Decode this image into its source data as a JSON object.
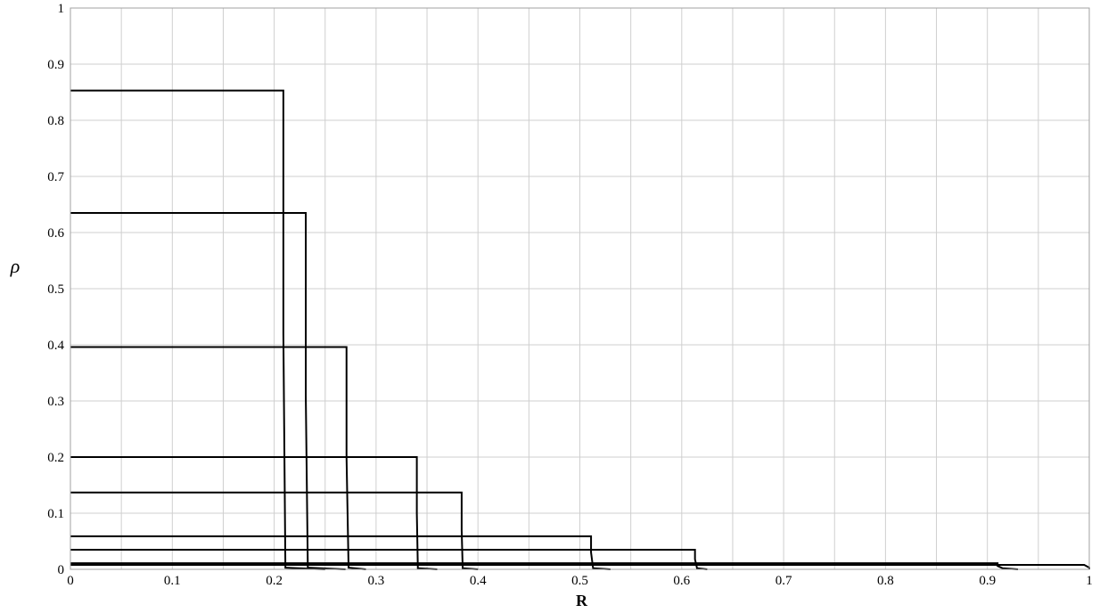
{
  "chart_data": {
    "type": "line",
    "title": "",
    "xlabel": "R",
    "ylabel": "ρ",
    "xlim": [
      0,
      1
    ],
    "ylim": [
      0,
      1
    ],
    "xticks": [
      0,
      0.1,
      0.2,
      0.3,
      0.4,
      0.5,
      0.6,
      0.7,
      0.8,
      0.9,
      1
    ],
    "xtick_labels": [
      "0",
      "0.1",
      "0.2",
      "0.3",
      "0.4",
      "0.5",
      "0.6",
      "0.7",
      "0.8",
      "0.9",
      "1"
    ],
    "yticks": [
      0,
      0.1,
      0.2,
      0.3,
      0.4,
      0.5,
      0.6,
      0.7,
      0.8,
      0.9,
      1
    ],
    "ytick_labels": [
      "0",
      "0.1",
      "0.2",
      "0.3",
      "0.4",
      "0.5",
      "0.6",
      "0.7",
      "0.8",
      "0.9",
      "1"
    ],
    "grid": true,
    "x_minor_grid_step": 0.05,
    "line_color": "#000000",
    "series": [
      {
        "points": [
          [
            0,
            0.853
          ],
          [
            0.209,
            0.853
          ],
          [
            0.209,
            0.42
          ],
          [
            0.211,
            0.003
          ],
          [
            0.25,
            0
          ]
        ]
      },
      {
        "points": [
          [
            0,
            0.635
          ],
          [
            0.231,
            0.635
          ],
          [
            0.231,
            0.31
          ],
          [
            0.233,
            0.003
          ],
          [
            0.27,
            0
          ]
        ]
      },
      {
        "points": [
          [
            0,
            0.396
          ],
          [
            0.271,
            0.396
          ],
          [
            0.271,
            0.2
          ],
          [
            0.273,
            0.003
          ],
          [
            0.29,
            0
          ]
        ]
      },
      {
        "points": [
          [
            0,
            0.2
          ],
          [
            0.34,
            0.2
          ],
          [
            0.34,
            0.1
          ],
          [
            0.341,
            0.002
          ],
          [
            0.36,
            0
          ]
        ]
      },
      {
        "points": [
          [
            0,
            0.137
          ],
          [
            0.384,
            0.137
          ],
          [
            0.384,
            0.07
          ],
          [
            0.385,
            0.002
          ],
          [
            0.4,
            0
          ]
        ]
      },
      {
        "points": [
          [
            0,
            0.059
          ],
          [
            0.511,
            0.059
          ],
          [
            0.511,
            0.03
          ],
          [
            0.513,
            0.002
          ],
          [
            0.53,
            0
          ]
        ]
      },
      {
        "points": [
          [
            0,
            0.035
          ],
          [
            0.613,
            0.035
          ],
          [
            0.613,
            0.018
          ],
          [
            0.615,
            0.002
          ],
          [
            0.625,
            0
          ]
        ]
      },
      {
        "points": [
          [
            0,
            0.011
          ],
          [
            0.91,
            0.011
          ],
          [
            0.91,
            0.006
          ],
          [
            0.915,
            0.002
          ],
          [
            0.93,
            0
          ]
        ]
      },
      {
        "points": [
          [
            0,
            0.008
          ],
          [
            0.995,
            0.008
          ],
          [
            1,
            0.003
          ],
          [
            1,
            0
          ]
        ]
      }
    ]
  }
}
